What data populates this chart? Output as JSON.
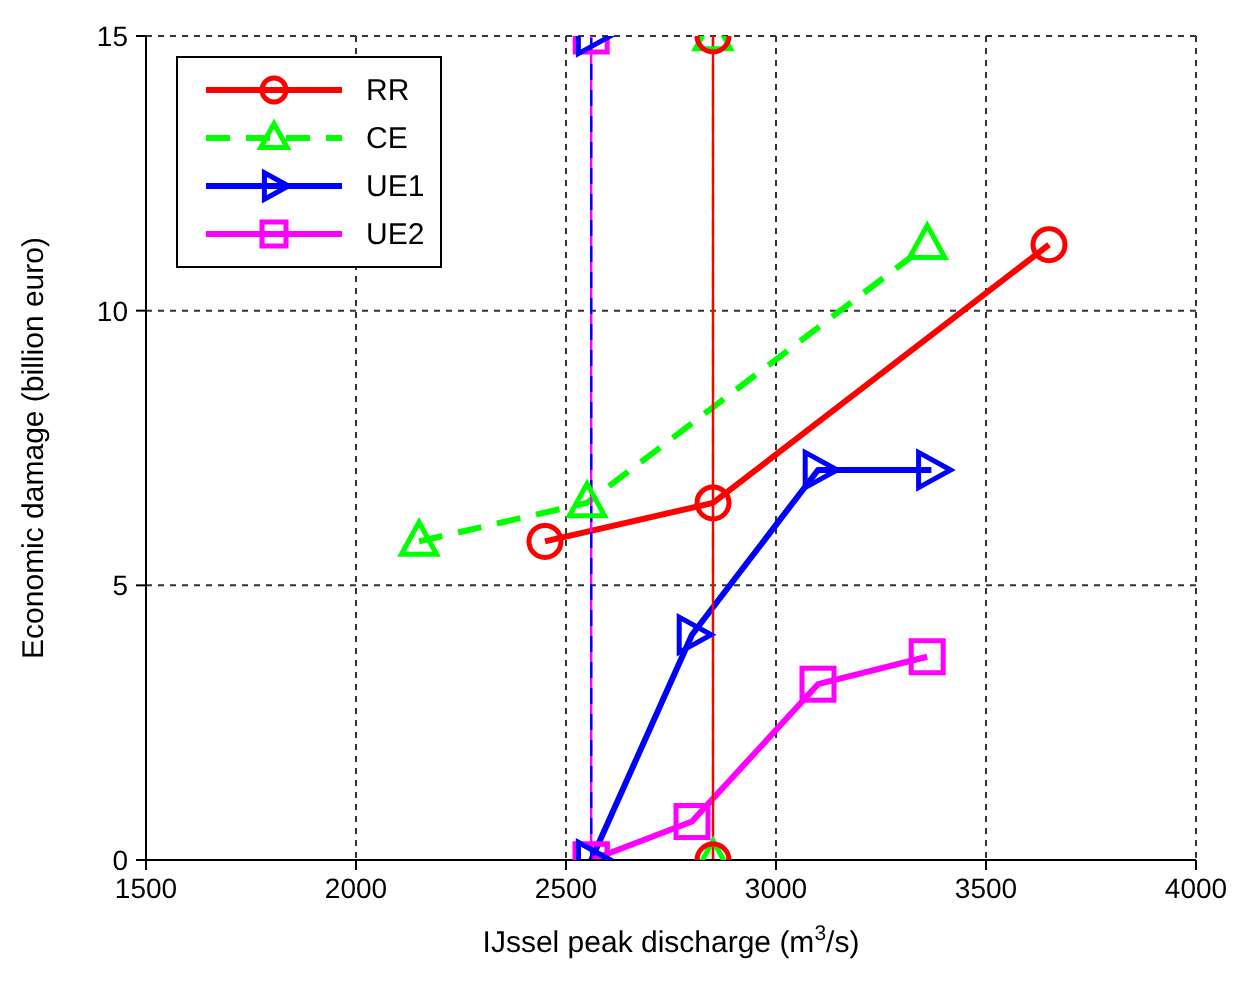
{
  "chart_data": {
    "type": "line",
    "xlabel": "IJssel peak discharge (m$^{3}$/s)",
    "ylabel": "Economic damage (billion euro)",
    "xlim": [
      1500,
      4000
    ],
    "xticks": [
      1500,
      2000,
      2500,
      3000,
      3500,
      4000
    ],
    "ylim": [
      0,
      15
    ],
    "yticks": [
      0,
      5,
      10,
      15
    ],
    "grid": true,
    "legend": "top left",
    "series": [
      {
        "name": "RR",
        "color": "#ff0000",
        "marker": "circle",
        "line_style": "solid",
        "x": [
          2450,
          2850,
          3650
        ],
        "values": [
          5.8,
          6.5,
          11.2
        ]
      },
      {
        "name": "CE",
        "color": "#00ff00",
        "marker": "triangle",
        "line_style": "dashed",
        "x": [
          2150,
          2550,
          3360
        ],
        "values": [
          5.8,
          6.5,
          11.2
        ]
      },
      {
        "name": "UE1",
        "color": "#0000ff",
        "marker": "triangle-right",
        "line_style": "solid",
        "x": [
          2560,
          2800,
          3100,
          3370
        ],
        "values": [
          0,
          4.1,
          7.1,
          7.1
        ]
      },
      {
        "name": "UE2",
        "color": "#ff00ff",
        "marker": "square",
        "line_style": "solid",
        "x": [
          2560,
          2800,
          3100,
          3360
        ],
        "values": [
          0,
          0.7,
          3.2,
          3.7
        ]
      },
      {
        "color": "#00ff00",
        "marker": "triangle",
        "line_style": "dashed",
        "x": [
          2850,
          2850
        ],
        "values": [
          0,
          15
        ]
      },
      {
        "color": "#ff0000",
        "marker": "circle",
        "line_style": "solid",
        "x": [
          2850,
          2850
        ],
        "values": [
          0,
          15
        ]
      },
      {
        "color": "#ff00ff",
        "marker": "square",
        "line_style": "solid",
        "x": [
          2560,
          2560
        ],
        "values": [
          0,
          15
        ]
      },
      {
        "color": "#0000ff",
        "marker": "triangle-right",
        "line_style": "dashed",
        "x": [
          2560,
          2560
        ],
        "values": [
          0,
          15
        ]
      }
    ]
  }
}
